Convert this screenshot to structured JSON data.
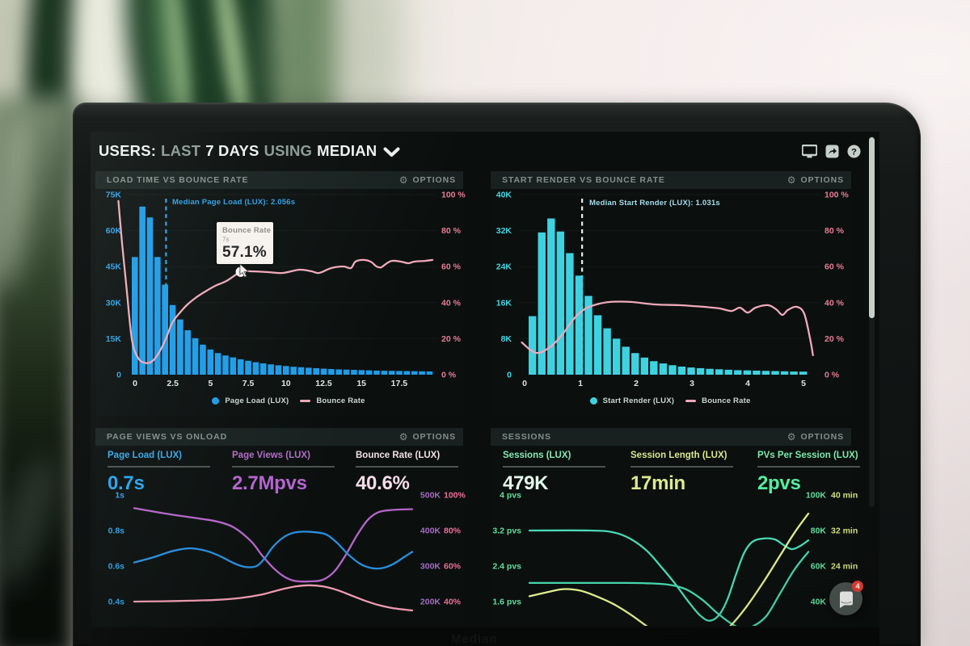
{
  "window": {
    "title_parts": [
      {
        "text": "USERS:",
        "tone": "bright"
      },
      {
        "text": "LAST",
        "tone": "dim"
      },
      {
        "text": "7 DAYS",
        "tone": "bright"
      },
      {
        "text": "USING",
        "tone": "dim"
      },
      {
        "text": "MEDIAN",
        "tone": "bright"
      }
    ],
    "toolbar_icons": [
      "display-icon",
      "share-icon",
      "help-icon"
    ],
    "help_glyph": "?",
    "gear_glyph": "⚙",
    "chat_badge": "4",
    "bottom_hint": "Median"
  },
  "chart_data": [
    {
      "id": "p1",
      "type": "bar+line",
      "title": "LOAD TIME VS BOUNCE RATE",
      "options_label": "OPTIONS",
      "left_axis": {
        "labels": [
          "75K",
          "60K",
          "45K",
          "30K",
          "15K",
          "0"
        ],
        "max": 75,
        "unit": "users(K)",
        "color": "#2f9fe6"
      },
      "right_axis": {
        "labels": [
          "100 %",
          "80 %",
          "60 %",
          "40 %",
          "20 %",
          "0 %"
        ],
        "max": 100,
        "color": "#e87b97"
      },
      "x_axis": {
        "tick_values": [
          0,
          2.5,
          5,
          7.5,
          10,
          12.5,
          15,
          17.5
        ],
        "labels": [
          "0",
          "2.5",
          "5",
          "7.5",
          "10",
          "12.5",
          "15",
          "17.5"
        ],
        "min": 0,
        "max": 20,
        "unit": "s",
        "color": "#dde6e2"
      },
      "bars": {
        "name": "Page Load (LUX)",
        "color": "#1e9ce8",
        "start_s": 0.0,
        "step_s": 0.5,
        "values_k": [
          49,
          70,
          65.5,
          49,
          37.5,
          29,
          23,
          18.5,
          15.2,
          12.5,
          10.5,
          9,
          8,
          7.2,
          6.4,
          5.8,
          5.2,
          4.7,
          4.3,
          3.9,
          3.6,
          3.3,
          3.1,
          2.9,
          2.7,
          2.5,
          2.35,
          2.2,
          2.1,
          2.0,
          1.9,
          1.8,
          1.7,
          1.65,
          1.6,
          1.55,
          1.5,
          1.45,
          1.4,
          1.35
        ]
      },
      "line": {
        "name": "Bounce Rate",
        "color": "#f0a9ba",
        "axis": "pct",
        "points": [
          [
            -1.1,
            96.5
          ],
          [
            -0.86,
            73.5
          ],
          [
            -0.54,
            46.5
          ],
          [
            -0.21,
            19.7
          ],
          [
            0.16,
            9.9
          ],
          [
            0.59,
            6.7
          ],
          [
            1.1,
            7.2
          ],
          [
            1.55,
            11.7
          ],
          [
            2.03,
            19.7
          ],
          [
            2.46,
            28.7
          ],
          [
            2.94,
            34.1
          ],
          [
            3.48,
            39.0
          ],
          [
            4.07,
            43.0
          ],
          [
            4.66,
            46.2
          ],
          [
            5.3,
            49.3
          ],
          [
            6.05,
            52.0
          ],
          [
            7.0,
            57.1
          ],
          [
            7.65,
            57.4
          ],
          [
            8.73,
            57.0
          ],
          [
            9.8,
            56.5
          ],
          [
            10.9,
            58.3
          ],
          [
            11.7,
            57.4
          ],
          [
            12.2,
            56.5
          ],
          [
            13.0,
            59.2
          ],
          [
            13.8,
            60.1
          ],
          [
            14.3,
            59.2
          ],
          [
            14.6,
            62.8
          ],
          [
            15.1,
            63.7
          ],
          [
            15.6,
            62.8
          ],
          [
            16.0,
            60.1
          ],
          [
            16.3,
            59.6
          ],
          [
            16.6,
            61.4
          ],
          [
            17.0,
            63.2
          ],
          [
            17.6,
            62.8
          ],
          [
            18.1,
            61.9
          ],
          [
            18.5,
            62.8
          ],
          [
            19.2,
            63.2
          ],
          [
            19.7,
            63.7
          ]
        ]
      },
      "median": {
        "x_s": 2.056,
        "label": "Median Page Load (LUX): 2.056s",
        "color": "#2f9fe6",
        "line_color": "#2f9fe6"
      },
      "tooltip": {
        "title": "Bounce Rate",
        "x_label": "7s",
        "value": "57.1%",
        "x_s": 7.0,
        "y_pct": 57.1
      },
      "legend": [
        {
          "marker": "dot",
          "color": "#1e9ce8",
          "label": "Page Load (LUX)"
        },
        {
          "marker": "dash",
          "color": "#f0a9ba",
          "label": "Bounce Rate"
        }
      ]
    },
    {
      "id": "p2",
      "type": "bar+line",
      "title": "START RENDER VS BOUNCE RATE",
      "options_label": "OPTIONS",
      "left_axis": {
        "labels": [
          "40K",
          "32K",
          "24K",
          "16K",
          "8K",
          "0"
        ],
        "max": 40,
        "unit": "users(K)",
        "color": "#47d6e2"
      },
      "right_axis": {
        "labels": [
          "100 %",
          "80 %",
          "60 %",
          "40 %",
          "20 %",
          "0 %"
        ],
        "max": 100,
        "color": "#e87b97"
      },
      "x_axis": {
        "tick_values": [
          0,
          1,
          2,
          3,
          4,
          5
        ],
        "labels": [
          "0",
          "1",
          "2",
          "3",
          "4",
          "5"
        ],
        "min": 0,
        "max": 5.15,
        "unit": "s",
        "color": "#dde6e2"
      },
      "bars": {
        "name": "Start Render (LUX)",
        "color": "#3ed2e0",
        "start_s": 0.1,
        "step_s": 0.1667,
        "values_k": [
          13,
          31.6,
          34.7,
          31.8,
          27,
          22,
          17.5,
          13.2,
          10.3,
          8,
          6.2,
          4.8,
          3.8,
          3.0,
          2.5,
          2.1,
          1.8,
          1.6,
          1.45,
          1.3,
          1.2,
          1.1,
          1.0,
          0.95,
          0.9,
          0.85,
          0.8,
          0.75,
          0.7,
          0.68
        ]
      },
      "line": {
        "name": "Bounce Rate",
        "color": "#f0a9ba",
        "axis": "pct",
        "points": [
          [
            -0.05,
            17.9
          ],
          [
            0.2,
            12.1
          ],
          [
            0.45,
            15.2
          ],
          [
            0.67,
            22.0
          ],
          [
            0.88,
            30.9
          ],
          [
            1.07,
            36.3
          ],
          [
            1.29,
            39.0
          ],
          [
            1.54,
            40.4
          ],
          [
            1.9,
            40.4
          ],
          [
            2.33,
            39.0
          ],
          [
            2.77,
            38.6
          ],
          [
            3.2,
            37.7
          ],
          [
            3.49,
            36.8
          ],
          [
            3.71,
            35.4
          ],
          [
            3.86,
            37.2
          ],
          [
            4.0,
            34.5
          ],
          [
            4.14,
            37.2
          ],
          [
            4.36,
            38.6
          ],
          [
            4.51,
            36.3
          ],
          [
            4.62,
            33.2
          ],
          [
            4.72,
            35.9
          ],
          [
            4.87,
            37.7
          ],
          [
            5.01,
            34.1
          ],
          [
            5.12,
            19.7
          ],
          [
            5.17,
            10.8
          ]
        ]
      },
      "median": {
        "x_s": 1.031,
        "label": "Median Start Render (LUX): 1.031s",
        "color": "#a5dcea",
        "line_color": "#e4f0f0"
      },
      "legend": [
        {
          "marker": "dot",
          "color": "#3ed2e0",
          "label": "Start Render (LUX)"
        },
        {
          "marker": "dash",
          "color": "#f0a9ba",
          "label": "Bounce Rate"
        }
      ]
    },
    {
      "id": "p3",
      "type": "line",
      "title": "PAGE VIEWS VS ONLOAD",
      "options_label": "OPTIONS",
      "stats": [
        {
          "label": "Page Load (LUX)",
          "value": "0.7s",
          "label_color": "#3aa6e8",
          "value_color": "#2aa4ec"
        },
        {
          "label": "Page Views (LUX)",
          "value": "2.7Mpvs",
          "label_color": "#b26cc8",
          "value_color": "#b463cf"
        },
        {
          "label": "Bounce Rate (LUX)",
          "value": "40.6%",
          "label_color": "#f2dee6",
          "value_color": "#f7dce8"
        }
      ],
      "left_axis": {
        "labels": [
          "1s",
          "0.8s",
          "0.6s",
          "0.4s"
        ],
        "values": [
          1.0,
          0.8,
          0.6,
          0.4
        ],
        "color": "#2f9fe6"
      },
      "right_axis": {
        "rows": [
          [
            "500K",
            "100%"
          ],
          [
            "400K",
            "80%"
          ],
          [
            "300K",
            "60%"
          ],
          [
            "200K",
            "40%"
          ]
        ],
        "k_color": "#a56cc2",
        "pct_color": "#ec6f96"
      },
      "series": [
        {
          "name": "Page Views",
          "color": "#b466c8",
          "axis": "k",
          "points": [
            [
              0,
              463
            ],
            [
              0.08,
              452
            ],
            [
              0.16,
              442
            ],
            [
              0.24,
              433
            ],
            [
              0.3,
              425
            ],
            [
              0.36,
              408
            ],
            [
              0.42,
              370
            ],
            [
              0.46,
              330
            ],
            [
              0.5,
              295
            ],
            [
              0.54,
              270
            ],
            [
              0.58,
              258
            ],
            [
              0.64,
              257
            ],
            [
              0.68,
              262
            ],
            [
              0.72,
              285
            ],
            [
              0.76,
              330
            ],
            [
              0.8,
              385
            ],
            [
              0.84,
              430
            ],
            [
              0.88,
              452
            ],
            [
              0.93,
              458
            ],
            [
              1,
              460
            ]
          ]
        },
        {
          "name": "Page Load",
          "color": "#2a8ede",
          "axis": "s",
          "points": [
            [
              0,
              0.62
            ],
            [
              0.07,
              0.65
            ],
            [
              0.14,
              0.685
            ],
            [
              0.2,
              0.7
            ],
            [
              0.26,
              0.685
            ],
            [
              0.31,
              0.655
            ],
            [
              0.36,
              0.615
            ],
            [
              0.4,
              0.595
            ],
            [
              0.44,
              0.6
            ],
            [
              0.47,
              0.645
            ],
            [
              0.5,
              0.71
            ],
            [
              0.54,
              0.765
            ],
            [
              0.58,
              0.79
            ],
            [
              0.64,
              0.792
            ],
            [
              0.69,
              0.778
            ],
            [
              0.73,
              0.73
            ],
            [
              0.77,
              0.665
            ],
            [
              0.81,
              0.615
            ],
            [
              0.85,
              0.59
            ],
            [
              0.89,
              0.588
            ],
            [
              0.93,
              0.61
            ],
            [
              0.97,
              0.65
            ],
            [
              1,
              0.68
            ]
          ]
        },
        {
          "name": "Bounce Rate",
          "color": "#ef9cb2",
          "axis": "pct",
          "points": [
            [
              0,
              40
            ],
            [
              0.1,
              40.2
            ],
            [
              0.2,
              40.5
            ],
            [
              0.3,
              41
            ],
            [
              0.38,
              42
            ],
            [
              0.46,
              44
            ],
            [
              0.52,
              46.5
            ],
            [
              0.58,
              48.5
            ],
            [
              0.63,
              49.2
            ],
            [
              0.68,
              48.5
            ],
            [
              0.73,
              46.5
            ],
            [
              0.78,
              43.5
            ],
            [
              0.83,
              40.5
            ],
            [
              0.88,
              38
            ],
            [
              0.93,
              36.3
            ],
            [
              1,
              35
            ]
          ]
        }
      ]
    },
    {
      "id": "p4",
      "type": "line",
      "title": "SESSIONS",
      "options_label": "OPTIONS",
      "stats": [
        {
          "label": "Sessions (LUX)",
          "value": "479K",
          "label_color": "#86e6b2",
          "value_color": "#e2f8ea"
        },
        {
          "label": "Session Length (LUX)",
          "value": "17min",
          "label_color": "#d8e68f",
          "value_color": "#dcea90"
        },
        {
          "label": "PVs Per Session (LUX)",
          "value": "2pvs",
          "label_color": "#7fe8ac",
          "value_color": "#55eda0"
        }
      ],
      "left_axis": {
        "labels": [
          "4 pvs",
          "3.2 pvs",
          "2.4 pvs",
          "1.6 pvs"
        ],
        "values": [
          4,
          3.2,
          2.4,
          1.6
        ],
        "color": "#63dd9d"
      },
      "right_axis": {
        "rows": [
          [
            "100K",
            "40 min"
          ],
          [
            "80K",
            "32 min"
          ],
          [
            "60K",
            "24 min"
          ],
          [
            "40K",
            ""
          ]
        ],
        "k_color": "#63dd9d",
        "pct_color": "#cfe07e"
      },
      "series": [
        {
          "name": "Sessions",
          "color": "#46d6ac",
          "axis": "k",
          "points": [
            [
              0,
              50.5
            ],
            [
              0.35,
              50.5
            ],
            [
              0.42,
              50.3
            ],
            [
              0.5,
              49.5
            ],
            [
              0.56,
              47
            ],
            [
              0.62,
              41
            ],
            [
              0.67,
              34
            ],
            [
              0.72,
              28
            ],
            [
              0.76,
              25
            ],
            [
              0.8,
              26
            ],
            [
              0.85,
              32
            ],
            [
              0.9,
              45
            ],
            [
              0.95,
              58
            ],
            [
              1,
              68
            ]
          ]
        },
        {
          "name": "PVs Per Session",
          "color": "#4ad9b4",
          "axis": "pvs",
          "points": [
            [
              0,
              3.2
            ],
            [
              0.22,
              3.2
            ],
            [
              0.3,
              3.16
            ],
            [
              0.36,
              3.02
            ],
            [
              0.42,
              2.75
            ],
            [
              0.47,
              2.4
            ],
            [
              0.52,
              2.02
            ],
            [
              0.57,
              1.6
            ],
            [
              0.61,
              1.3
            ],
            [
              0.645,
              1.17
            ],
            [
              0.68,
              1.3
            ],
            [
              0.71,
              1.65
            ],
            [
              0.74,
              2.2
            ],
            [
              0.77,
              2.7
            ],
            [
              0.8,
              2.95
            ],
            [
              0.84,
              3.02
            ],
            [
              0.88,
              3.0
            ],
            [
              0.91,
              2.88
            ],
            [
              0.94,
              2.78
            ],
            [
              0.97,
              2.85
            ],
            [
              1,
              2.98
            ]
          ]
        },
        {
          "name": "Session Length",
          "color": "#e0ec8c",
          "axis": "min",
          "points": [
            [
              0,
              17.2
            ],
            [
              0.07,
              18.2
            ],
            [
              0.12,
              18.8
            ],
            [
              0.18,
              18.5
            ],
            [
              0.24,
              17.2
            ],
            [
              0.3,
              15.5
            ],
            [
              0.36,
              13.2
            ],
            [
              0.42,
              10.5
            ],
            [
              0.48,
              8
            ],
            [
              0.54,
              6.5
            ],
            [
              0.6,
              6.2
            ],
            [
              0.66,
              7.5
            ],
            [
              0.72,
              10.5
            ],
            [
              0.78,
              15
            ],
            [
              0.84,
              20.5
            ],
            [
              0.9,
              26.5
            ],
            [
              0.95,
              31.5
            ],
            [
              1,
              35.8
            ]
          ]
        }
      ]
    }
  ]
}
